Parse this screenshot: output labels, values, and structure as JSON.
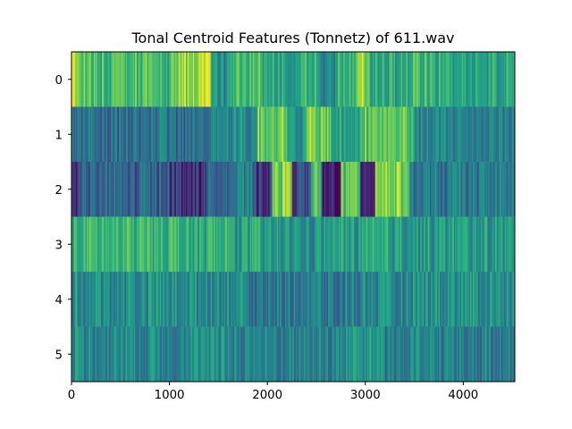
{
  "chart_data": {
    "type": "heatmap",
    "title": "Tonal Centroid Features (Tonnetz) of 611.wav",
    "xlabel": "",
    "ylabel": "",
    "colormap": "viridis",
    "x_range": [
      0,
      4526
    ],
    "y_rows": [
      0,
      1,
      2,
      3,
      4,
      5
    ],
    "x_ticks": [
      0,
      1000,
      2000,
      3000,
      4000
    ],
    "x_tick_labels": [
      "0",
      "1000",
      "2000",
      "3000",
      "4000"
    ],
    "y_ticks": [
      0,
      1,
      2,
      3,
      4,
      5
    ],
    "y_tick_labels": [
      "0",
      "1",
      "2",
      "3",
      "4",
      "5"
    ],
    "grid": false,
    "legend": "none",
    "num_frames": 4526,
    "rows": [
      {
        "index": 0,
        "base": 0.62,
        "segments": [
          {
            "start": 0,
            "end": 60,
            "value": 0.92
          },
          {
            "start": 60,
            "end": 250,
            "value": 0.72
          },
          {
            "start": 250,
            "end": 800,
            "value": 0.7
          },
          {
            "start": 800,
            "end": 1000,
            "value": 0.66
          },
          {
            "start": 1000,
            "end": 1250,
            "value": 0.84
          },
          {
            "start": 1250,
            "end": 1420,
            "value": 0.9
          },
          {
            "start": 1420,
            "end": 1650,
            "value": 0.52
          },
          {
            "start": 1650,
            "end": 1950,
            "value": 0.74
          },
          {
            "start": 1950,
            "end": 2500,
            "value": 0.62
          },
          {
            "start": 2500,
            "end": 2700,
            "value": 0.5
          },
          {
            "start": 2700,
            "end": 2900,
            "value": 0.6
          },
          {
            "start": 2900,
            "end": 3050,
            "value": 0.86
          },
          {
            "start": 3050,
            "end": 3350,
            "value": 0.6
          },
          {
            "start": 3350,
            "end": 3700,
            "value": 0.66
          },
          {
            "start": 3700,
            "end": 4526,
            "value": 0.6
          }
        ]
      },
      {
        "index": 1,
        "base": 0.42,
        "segments": [
          {
            "start": 0,
            "end": 1400,
            "value": 0.38
          },
          {
            "start": 1400,
            "end": 1900,
            "value": 0.48
          },
          {
            "start": 1900,
            "end": 2200,
            "value": 0.8
          },
          {
            "start": 2200,
            "end": 2400,
            "value": 0.52
          },
          {
            "start": 2400,
            "end": 2650,
            "value": 0.78
          },
          {
            "start": 2650,
            "end": 2950,
            "value": 0.55
          },
          {
            "start": 2950,
            "end": 3500,
            "value": 0.74
          },
          {
            "start": 3500,
            "end": 4526,
            "value": 0.44
          }
        ]
      },
      {
        "index": 2,
        "base": 0.32,
        "segments": [
          {
            "start": 0,
            "end": 60,
            "value": 0.1
          },
          {
            "start": 60,
            "end": 1000,
            "value": 0.32
          },
          {
            "start": 1000,
            "end": 1400,
            "value": 0.16
          },
          {
            "start": 1400,
            "end": 1850,
            "value": 0.4
          },
          {
            "start": 1850,
            "end": 2050,
            "value": 0.2
          },
          {
            "start": 2050,
            "end": 2250,
            "value": 0.8
          },
          {
            "start": 2250,
            "end": 2450,
            "value": 0.22
          },
          {
            "start": 2450,
            "end": 2550,
            "value": 0.7
          },
          {
            "start": 2550,
            "end": 2750,
            "value": 0.08
          },
          {
            "start": 2750,
            "end": 2950,
            "value": 0.74
          },
          {
            "start": 2950,
            "end": 3100,
            "value": 0.16
          },
          {
            "start": 3100,
            "end": 3450,
            "value": 0.82
          },
          {
            "start": 3450,
            "end": 4526,
            "value": 0.4
          }
        ]
      },
      {
        "index": 3,
        "base": 0.58,
        "segments": [
          {
            "start": 0,
            "end": 1100,
            "value": 0.66
          },
          {
            "start": 1100,
            "end": 1650,
            "value": 0.62
          },
          {
            "start": 1650,
            "end": 2000,
            "value": 0.56
          },
          {
            "start": 2000,
            "end": 2600,
            "value": 0.52
          },
          {
            "start": 2600,
            "end": 3400,
            "value": 0.56
          },
          {
            "start": 3400,
            "end": 4526,
            "value": 0.54
          }
        ]
      },
      {
        "index": 4,
        "base": 0.48,
        "segments": [
          {
            "start": 0,
            "end": 1800,
            "value": 0.5
          },
          {
            "start": 1800,
            "end": 2600,
            "value": 0.42
          },
          {
            "start": 2600,
            "end": 2800,
            "value": 0.36
          },
          {
            "start": 2800,
            "end": 3400,
            "value": 0.46
          },
          {
            "start": 3400,
            "end": 4526,
            "value": 0.52
          }
        ]
      },
      {
        "index": 5,
        "base": 0.46,
        "segments": [
          {
            "start": 0,
            "end": 1900,
            "value": 0.48
          },
          {
            "start": 1900,
            "end": 2800,
            "value": 0.44
          },
          {
            "start": 2800,
            "end": 3200,
            "value": 0.54
          },
          {
            "start": 3200,
            "end": 4526,
            "value": 0.44
          }
        ]
      }
    ]
  }
}
